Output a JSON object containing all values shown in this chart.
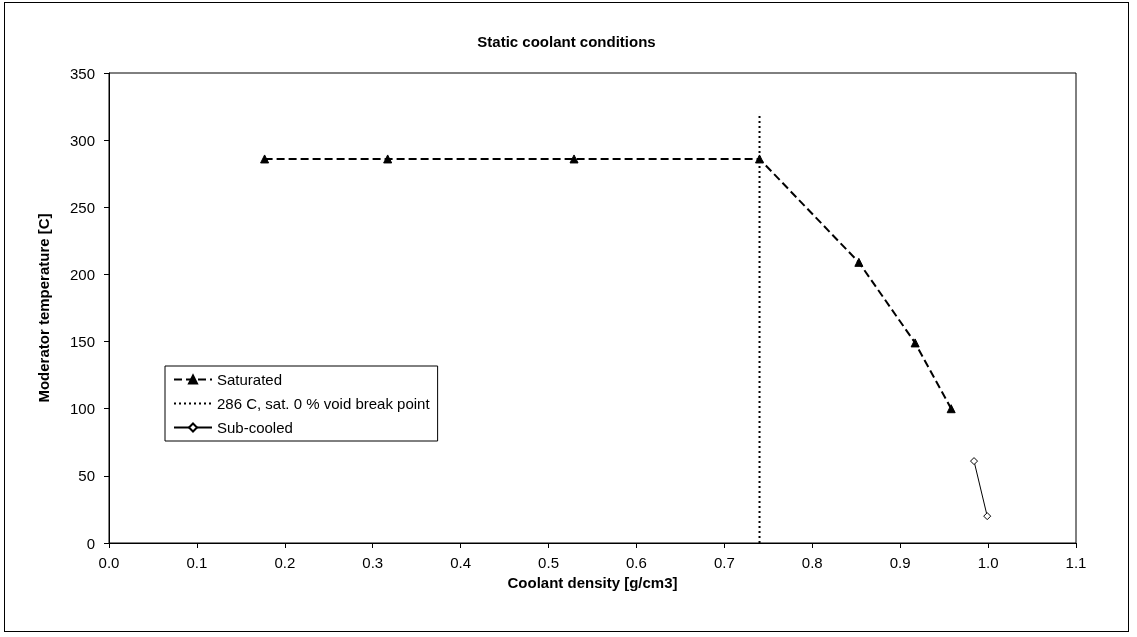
{
  "chart_data": {
    "type": "line",
    "title": "Static coolant conditions",
    "xlabel": "Coolant density [g/cm3]",
    "ylabel": "Moderator temperature [C]",
    "xlim": [
      0,
      1.1
    ],
    "xticks": [
      {
        "value": 0,
        "label": "0.0"
      },
      0.1,
      0.2,
      0.3,
      0.4,
      0.5,
      0.6,
      0.7,
      0.8,
      0.9,
      {
        "value": 1,
        "label": "1.0"
      },
      1.1
    ],
    "ylim": [
      0,
      350
    ],
    "yticks": [
      0,
      50,
      100,
      150,
      200,
      250,
      300,
      350
    ],
    "grid": false,
    "legend": "bottom left",
    "series": [
      {
        "name": "Saturated",
        "color": "#000000",
        "marker": "triangle",
        "line_style": "dashed",
        "x": [
          0.177,
          0.317,
          0.529,
          0.74,
          0.853,
          0.917,
          0.958
        ],
        "values": [
          286,
          286,
          286,
          286,
          209,
          149,
          100
        ]
      },
      {
        "name": "286 C, sat. 0 % void break point",
        "color": "#000000",
        "marker": "none",
        "line_style": "dotted",
        "x": [
          0.74,
          0.74
        ],
        "values": [
          0,
          320
        ]
      },
      {
        "name": "Sub-cooled",
        "color": "#000000",
        "marker": "diamond",
        "line_style": "solid",
        "x": [
          0.984,
          0.999
        ],
        "values": [
          61,
          20
        ]
      }
    ]
  }
}
